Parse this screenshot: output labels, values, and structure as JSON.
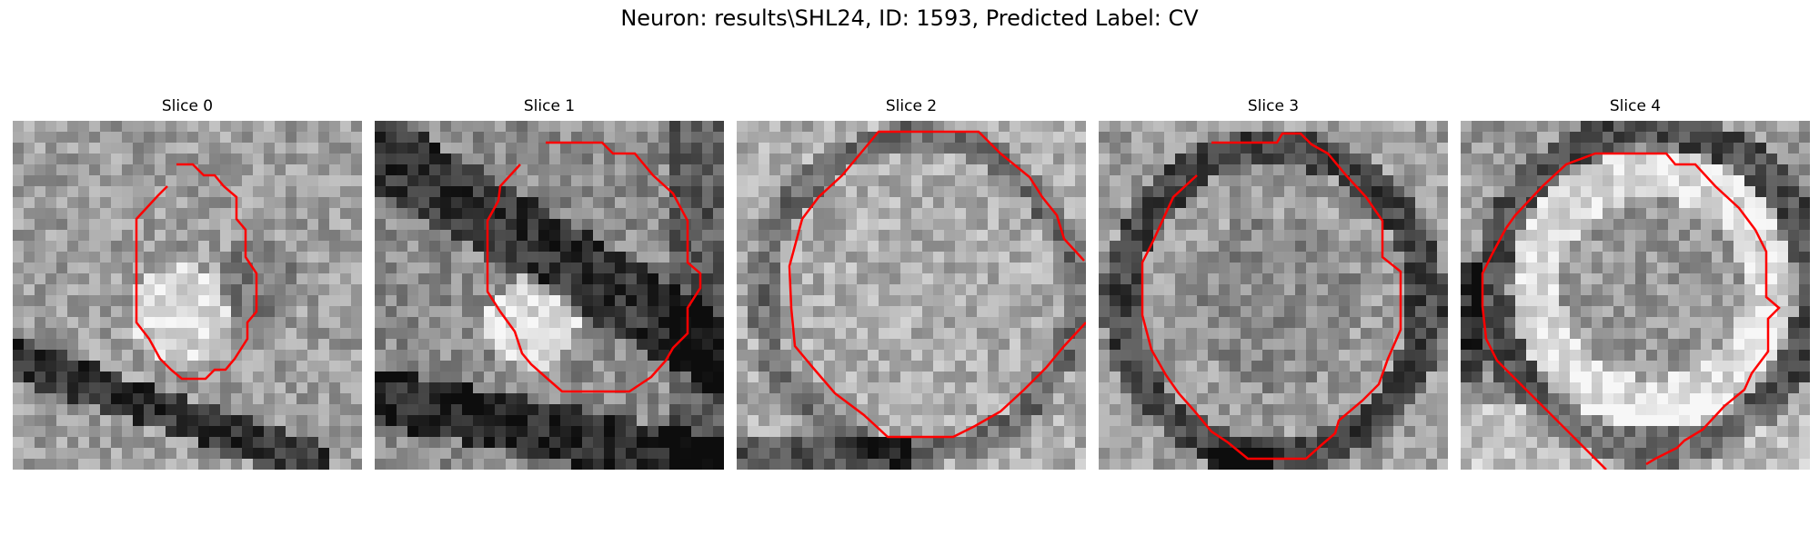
{
  "figure": {
    "title": "Neuron: results\\SHL24, ID: 1593, Predicted Label: CV"
  },
  "panels": [
    {
      "title": "Slice 0",
      "scene": "Grayscale noisy micrograph patch with a lighter blob near the center-left and dark band along the lower-left; red contour outlines an elongated vertical region."
    },
    {
      "title": "Slice 1",
      "scene": "Grayscale micrograph patch with dark diagonal structures and a bright region near the lower-left of center; red contour outlines an irregular roughly round region."
    },
    {
      "title": "Slice 2",
      "scene": "Grayscale micrograph patch with a large roundish lighter area bordered by darker membranes; red contour outlines a wide octagon-like shape."
    },
    {
      "title": "Slice 3",
      "scene": "Grayscale micrograph patch showing a roughly circular structure with a darker rim; red contour outlines a large polygon around it."
    },
    {
      "title": "Slice 4",
      "scene": "Grayscale micrograph patch showing a bright ring-shaped structure with a dark outer band; red contour outlines a polygon that extends to the bottom edge."
    }
  ],
  "colors": {
    "contour": "#ff0000",
    "background": "#ffffff"
  }
}
